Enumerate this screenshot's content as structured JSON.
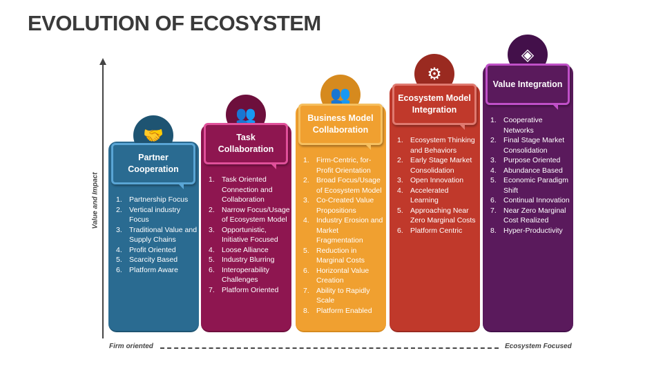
{
  "title": "EVOLUTION OF ECOSYSTEM",
  "axis": {
    "y_label": "Value and Impact",
    "x_start": "Firm oriented",
    "x_end": "Ecosystem Focused"
  },
  "columns": [
    {
      "title": "Partner Cooperation",
      "icon": "handshake-icon",
      "color": "#2a6b91",
      "items": [
        "Partnership Focus",
        "Vertical industry Focus",
        "Traditional Value and Supply Chains",
        "Profit Oriented",
        "Scarcity Based",
        "Platform Aware"
      ]
    },
    {
      "title": "Task Collaboration",
      "icon": "team-puzzle-icon",
      "color": "#8e1650",
      "items": [
        "Task Oriented Connection and Collaboration",
        "Narrow Focus/Usage of Ecosystem Model",
        "Opportunistic, Initiative Focused",
        "Loose Alliance",
        "Industry Blurring",
        "Interoperability Challenges",
        "Platform Oriented"
      ]
    },
    {
      "title": "Business Model Collaboration",
      "icon": "meeting-icon",
      "color": "#f0a030",
      "items": [
        "Firm-Centric, for-Profit Orientation",
        "Broad Focus/Usage of Ecosystem Model",
        "Co-Created Value Propositions",
        "Industry Erosion and Market Fragmentation",
        "Reduction in Marginal Costs",
        "Horizontal Value Creation",
        "Ability to Rapidly Scale",
        "Platform Enabled"
      ]
    },
    {
      "title": "Ecosystem Model Integration",
      "icon": "gear-leaf-icon",
      "color": "#c0392b",
      "items": [
        "Ecosystem Thinking and Behaviors",
        "Early Stage Market Consolidation",
        "Open Innovation",
        "Accelerated Learning",
        "Approaching Near Zero Marginal Costs",
        "Platform Centric"
      ]
    },
    {
      "title": "Value Integration",
      "icon": "gear-diamond-icon",
      "color": "#5a1a5c",
      "items": [
        "Cooperative Networks",
        "Final Stage Market Consolidation",
        "Purpose Oriented",
        "Abundance Based",
        "Economic Paradigm Shift",
        "Continual Innovation",
        "Near Zero Marginal Cost Realized",
        "Hyper-Productivity"
      ]
    }
  ]
}
